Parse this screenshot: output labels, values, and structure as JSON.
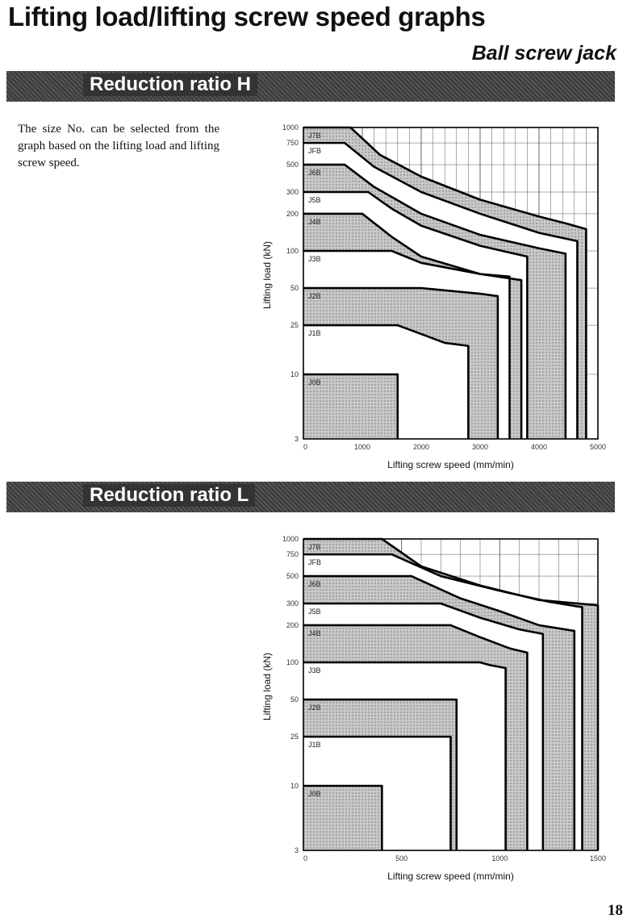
{
  "page": {
    "title": "Lifting load/lifting screw speed graphs",
    "subtitle": "Ball screw jack",
    "page_number": "18"
  },
  "sections": [
    {
      "banner": "Reduction ratio H",
      "intro": "The size No. can be selected from the graph based on the lifting load and lifting screw speed."
    },
    {
      "banner": "Reduction ratio L",
      "intro": ""
    }
  ],
  "chart_data": [
    {
      "type": "area",
      "title": "Reduction ratio H",
      "xlabel": "Lifting screw speed (mm/min)",
      "ylabel": "Lifting load (kN)",
      "y_scale": "log",
      "xlim": [
        0,
        5000
      ],
      "ylim": [
        3,
        1000
      ],
      "x_ticks": [
        "0",
        "1000",
        "2000",
        "3000",
        "4000",
        "5000"
      ],
      "y_ticks": [
        "1000",
        "750",
        "500",
        "300",
        "200",
        "100",
        "50",
        "25",
        "10",
        "3"
      ],
      "series": [
        {
          "name": "J7B",
          "load_max": 1000,
          "x": [
            0,
            800,
            1300,
            2000,
            3000,
            4000,
            4500,
            4800
          ],
          "y": [
            1000,
            1000,
            600,
            400,
            260,
            190,
            165,
            150
          ]
        },
        {
          "name": "JFB",
          "load_max": 750,
          "x": [
            0,
            700,
            1200,
            2000,
            3000,
            4000,
            4650
          ],
          "y": [
            750,
            750,
            480,
            300,
            200,
            140,
            120
          ]
        },
        {
          "name": "J6B",
          "load_max": 500,
          "x": [
            0,
            700,
            1200,
            2000,
            3000,
            4000,
            4450
          ],
          "y": [
            500,
            500,
            330,
            200,
            135,
            105,
            95
          ]
        },
        {
          "name": "J5B",
          "load_max": 300,
          "x": [
            0,
            1100,
            1500,
            2000,
            3000,
            3800
          ],
          "y": [
            300,
            300,
            220,
            160,
            110,
            90
          ]
        },
        {
          "name": "J4B",
          "load_max": 200,
          "x": [
            0,
            1000,
            1500,
            2000,
            3000,
            3700
          ],
          "y": [
            200,
            200,
            130,
            90,
            65,
            58
          ]
        },
        {
          "name": "J3B",
          "load_max": 100,
          "x": [
            0,
            1500,
            2000,
            3000,
            3500
          ],
          "y": [
            100,
            100,
            80,
            65,
            62
          ]
        },
        {
          "name": "J2B",
          "load_max": 50,
          "x": [
            0,
            2000,
            3000,
            3300
          ],
          "y": [
            50,
            50,
            45,
            43
          ]
        },
        {
          "name": "J1B",
          "load_max": 25,
          "x": [
            0,
            1600,
            2400,
            2800
          ],
          "y": [
            25,
            25,
            18,
            17
          ]
        },
        {
          "name": "J0B",
          "load_max": 10,
          "x": [
            0,
            1600
          ],
          "y": [
            10,
            10
          ]
        }
      ]
    },
    {
      "type": "area",
      "title": "Reduction ratio L",
      "xlabel": "Lifting screw speed (mm/min)",
      "ylabel": "Lifting load (kN)",
      "y_scale": "log",
      "xlim": [
        0,
        1500
      ],
      "ylim": [
        3,
        1000
      ],
      "x_ticks": [
        "0",
        "500",
        "1000",
        "1500"
      ],
      "y_ticks": [
        "1000",
        "750",
        "500",
        "300",
        "200",
        "100",
        "50",
        "25",
        "10",
        "3"
      ],
      "series": [
        {
          "name": "J7B",
          "load_max": 1000,
          "x": [
            0,
            400,
            600,
            900,
            1200,
            1500
          ],
          "y": [
            1000,
            1000,
            600,
            420,
            320,
            290
          ]
        },
        {
          "name": "JFB",
          "load_max": 750,
          "x": [
            0,
            450,
            700,
            1000,
            1250,
            1420
          ],
          "y": [
            750,
            750,
            500,
            380,
            310,
            280
          ]
        },
        {
          "name": "J6B",
          "load_max": 500,
          "x": [
            0,
            550,
            800,
            1000,
            1200,
            1380
          ],
          "y": [
            500,
            500,
            330,
            260,
            200,
            180
          ]
        },
        {
          "name": "J5B",
          "load_max": 300,
          "x": [
            0,
            700,
            900,
            1100,
            1220
          ],
          "y": [
            300,
            300,
            230,
            185,
            170
          ]
        },
        {
          "name": "J4B",
          "load_max": 200,
          "x": [
            0,
            750,
            900,
            1050,
            1140
          ],
          "y": [
            200,
            200,
            160,
            130,
            120
          ]
        },
        {
          "name": "J3B",
          "load_max": 100,
          "x": [
            0,
            900,
            950,
            1030
          ],
          "y": [
            100,
            100,
            95,
            90
          ]
        },
        {
          "name": "J2B",
          "load_max": 50,
          "x": [
            0,
            780
          ],
          "y": [
            50,
            50
          ]
        },
        {
          "name": "J1B",
          "load_max": 25,
          "x": [
            0,
            650,
            750
          ],
          "y": [
            25,
            25,
            25
          ]
        },
        {
          "name": "J0B",
          "load_max": 10,
          "x": [
            0,
            400
          ],
          "y": [
            10,
            10
          ]
        }
      ]
    }
  ]
}
